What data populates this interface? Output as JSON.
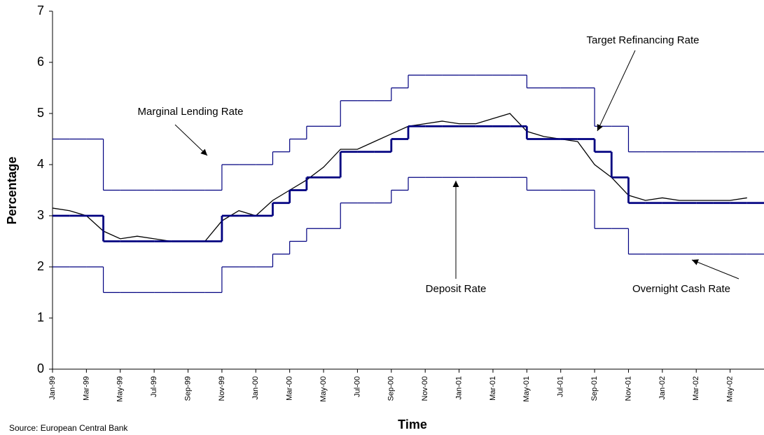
{
  "chart_data": {
    "type": "line",
    "x_label": "Time",
    "y_label": "Percentage",
    "source": "Source:  European Central Bank",
    "x": [
      "Jan-99",
      "Feb-99",
      "Mar-99",
      "Apr-99",
      "May-99",
      "Jun-99",
      "Jul-99",
      "Aug-99",
      "Sep-99",
      "Oct-99",
      "Nov-99",
      "Dec-99",
      "Jan-00",
      "Feb-00",
      "Mar-00",
      "Apr-00",
      "May-00",
      "Jun-00",
      "Jul-00",
      "Aug-00",
      "Sep-00",
      "Oct-00",
      "Nov-00",
      "Dec-00",
      "Jan-01",
      "Feb-01",
      "Mar-01",
      "Apr-01",
      "May-01",
      "Jun-01",
      "Jul-01",
      "Aug-01",
      "Sep-01",
      "Oct-01",
      "Nov-01",
      "Dec-01",
      "Jan-02",
      "Feb-02",
      "Mar-02",
      "Apr-02",
      "May-02",
      "Jun-02"
    ],
    "series": [
      {
        "name": "Marginal Lending Rate",
        "color": "#000080",
        "step": true,
        "values": [
          4.5,
          4.5,
          4.5,
          3.5,
          3.5,
          3.5,
          3.5,
          3.5,
          3.5,
          3.5,
          4.0,
          4.0,
          4.0,
          4.25,
          4.5,
          4.75,
          4.75,
          5.25,
          5.25,
          5.25,
          5.5,
          5.75,
          5.75,
          5.75,
          5.75,
          5.75,
          5.75,
          5.75,
          5.5,
          5.5,
          5.5,
          5.5,
          4.75,
          4.75,
          4.25,
          4.25,
          4.25,
          4.25,
          4.25,
          4.25,
          4.25,
          4.25
        ]
      },
      {
        "name": "Target Refinancing Rate",
        "color": "#000080",
        "step": true,
        "thick": true,
        "values": [
          3.0,
          3.0,
          3.0,
          2.5,
          2.5,
          2.5,
          2.5,
          2.5,
          2.5,
          2.5,
          3.0,
          3.0,
          3.0,
          3.25,
          3.5,
          3.75,
          3.75,
          4.25,
          4.25,
          4.25,
          4.5,
          4.75,
          4.75,
          4.75,
          4.75,
          4.75,
          4.75,
          4.75,
          4.5,
          4.5,
          4.5,
          4.5,
          4.25,
          3.75,
          3.25,
          3.25,
          3.25,
          3.25,
          3.25,
          3.25,
          3.25,
          3.25
        ]
      },
      {
        "name": "Deposit Rate",
        "color": "#000080",
        "step": true,
        "values": [
          2.0,
          2.0,
          2.0,
          1.5,
          1.5,
          1.5,
          1.5,
          1.5,
          1.5,
          1.5,
          2.0,
          2.0,
          2.0,
          2.25,
          2.5,
          2.75,
          2.75,
          3.25,
          3.25,
          3.25,
          3.5,
          3.75,
          3.75,
          3.75,
          3.75,
          3.75,
          3.75,
          3.75,
          3.5,
          3.5,
          3.5,
          3.5,
          2.75,
          2.75,
          2.25,
          2.25,
          2.25,
          2.25,
          2.25,
          2.25,
          2.25,
          2.25
        ]
      },
      {
        "name": "Overnight Cash Rate",
        "color": "#000000",
        "values": [
          3.15,
          3.1,
          3.0,
          2.7,
          2.55,
          2.6,
          2.55,
          2.5,
          2.5,
          2.5,
          2.9,
          3.1,
          3.0,
          3.3,
          3.5,
          3.7,
          3.95,
          4.3,
          4.3,
          4.45,
          4.6,
          4.75,
          4.8,
          4.85,
          4.8,
          4.8,
          4.9,
          5.0,
          4.65,
          4.55,
          4.5,
          4.45,
          4.0,
          3.75,
          3.4,
          3.3,
          3.35,
          3.3,
          3.3,
          3.3,
          3.3,
          3.35
        ]
      }
    ],
    "xlim": [
      "Jan-99",
      "Jul-02"
    ],
    "xticks": [
      "Jan-99",
      "Mar-99",
      "May-99",
      "Jul-99",
      "Sep-99",
      "Nov-99",
      "Jan-00",
      "Mar-00",
      "May-00",
      "Jul-00",
      "Sep-00",
      "Nov-00",
      "Jan-01",
      "Mar-01",
      "May-01",
      "Jul-01",
      "Sep-01",
      "Nov-01",
      "Jan-02",
      "Mar-02",
      "May-02"
    ],
    "ylim": [
      0,
      7
    ],
    "yticks": [
      0,
      1,
      2,
      3,
      4,
      5,
      6,
      7
    ],
    "grid": false
  }
}
